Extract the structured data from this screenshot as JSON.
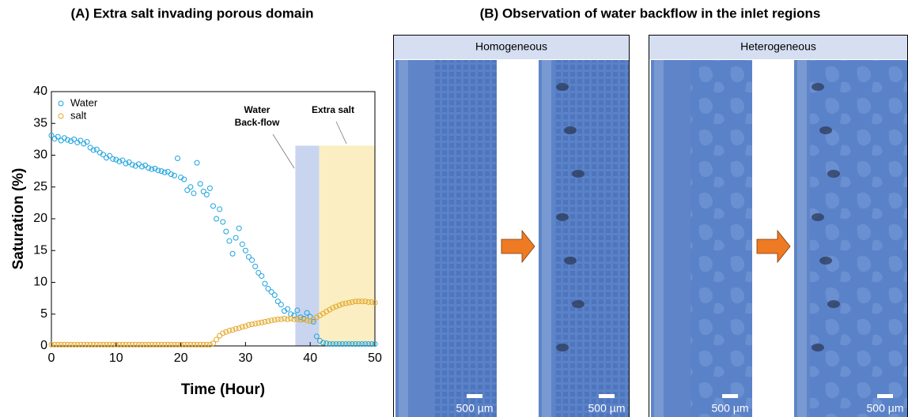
{
  "chart_data": {
    "type": "scatter",
    "title": "(A) Extra salt invading porous domain",
    "xlabel": "Time (Hour)",
    "ylabel": "Saturation (%)",
    "xlim": [
      0,
      50
    ],
    "ylim": [
      0,
      40
    ],
    "xticks": [
      0,
      10,
      20,
      30,
      40,
      50
    ],
    "yticks": [
      0,
      5,
      10,
      15,
      20,
      25,
      30,
      35,
      40
    ],
    "legend": "upper left",
    "x": [
      0,
      0.5,
      1,
      1.5,
      2,
      2.5,
      3,
      3.5,
      4,
      4.5,
      5,
      5.5,
      6,
      6.5,
      7,
      7.5,
      8,
      8.5,
      9,
      9.5,
      10,
      10.5,
      11,
      11.5,
      12,
      12.5,
      13,
      13.5,
      14,
      14.5,
      15,
      15.5,
      16,
      16.5,
      17,
      17.5,
      18,
      18.5,
      19,
      19.5,
      20,
      20.5,
      21,
      21.5,
      22,
      22.5,
      23,
      23.5,
      24,
      24.5,
      25,
      25.5,
      26,
      26.5,
      27,
      27.5,
      28,
      28.5,
      29,
      29.5,
      30,
      30.5,
      31,
      31.5,
      32,
      32.5,
      33,
      33.5,
      34,
      34.5,
      35,
      35.5,
      36,
      36.5,
      37,
      37.5,
      38,
      38.5,
      39,
      39.5,
      40,
      40.5,
      41,
      41.5,
      42,
      42.5,
      43,
      43.5,
      44,
      44.5,
      45,
      45.5,
      46,
      46.5,
      47,
      47.5,
      48,
      48.5,
      49,
      49.5,
      50
    ],
    "series": [
      {
        "name": "Water",
        "color": "#1aa3e0",
        "values": [
          33.1,
          32.6,
          32.9,
          32.3,
          32.7,
          32.4,
          32.2,
          32.5,
          32.0,
          32.3,
          31.8,
          32.1,
          31.2,
          30.8,
          30.9,
          30.4,
          30.1,
          29.6,
          29.9,
          29.4,
          29.3,
          29.0,
          29.2,
          28.7,
          28.9,
          28.5,
          28.3,
          28.6,
          28.2,
          28.4,
          28.0,
          27.8,
          27.9,
          27.6,
          27.5,
          27.3,
          27.4,
          27.0,
          26.8,
          29.5,
          26.5,
          26.2,
          24.5,
          25.0,
          24.0,
          28.8,
          25.5,
          24.3,
          23.8,
          24.8,
          22.0,
          20.0,
          21.5,
          19.5,
          18.0,
          16.5,
          14.5,
          17.0,
          18.5,
          16.0,
          15.0,
          14.0,
          13.5,
          12.5,
          11.5,
          11.0,
          9.8,
          9.0,
          8.5,
          8.0,
          7.0,
          6.5,
          5.5,
          5.8,
          5.0,
          4.8,
          5.6,
          4.5,
          4.3,
          5.2,
          4.6,
          3.8,
          1.5,
          0.8,
          0.5,
          0.4,
          0.3,
          0.3,
          0.3,
          0.3,
          0.3,
          0.3,
          0.3,
          0.3,
          0.3,
          0.3,
          0.3,
          0.3,
          0.3,
          0.3,
          0.3
        ]
      },
      {
        "name": "salt",
        "color": "#e3a82b",
        "values": [
          0.2,
          0.2,
          0.2,
          0.2,
          0.2,
          0.2,
          0.2,
          0.2,
          0.2,
          0.2,
          0.2,
          0.2,
          0.2,
          0.2,
          0.2,
          0.2,
          0.2,
          0.2,
          0.2,
          0.2,
          0.2,
          0.2,
          0.2,
          0.2,
          0.2,
          0.2,
          0.2,
          0.2,
          0.2,
          0.2,
          0.2,
          0.2,
          0.2,
          0.2,
          0.2,
          0.2,
          0.2,
          0.2,
          0.2,
          0.2,
          0.2,
          0.2,
          0.2,
          0.2,
          0.2,
          0.2,
          0.2,
          0.2,
          0.2,
          0.2,
          0.4,
          1.0,
          1.6,
          2.0,
          2.2,
          2.4,
          2.5,
          2.7,
          2.8,
          3.0,
          3.1,
          3.3,
          3.4,
          3.5,
          3.6,
          3.7,
          3.8,
          3.9,
          4.0,
          4.1,
          4.2,
          4.2,
          4.3,
          4.2,
          4.3,
          4.2,
          4.2,
          4.1,
          4.2,
          4.0,
          3.9,
          4.2,
          4.5,
          4.8,
          5.1,
          5.4,
          5.7,
          6.0,
          6.2,
          6.4,
          6.6,
          6.7,
          6.8,
          6.9,
          7.0,
          7.0,
          7.0,
          7.0,
          6.9,
          6.9,
          6.8
        ]
      }
    ],
    "spans": [
      {
        "label": [
          "Water",
          "Back-flow"
        ],
        "xrange": [
          37.7,
          41.4
        ],
        "yrange": [
          0,
          31.5
        ],
        "color": "#c9d5ef"
      },
      {
        "label": [
          "Extra salt"
        ],
        "xrange": [
          41.4,
          50
        ],
        "yrange": [
          0,
          31.5
        ],
        "color": "#fbeec2"
      }
    ]
  },
  "panel_b": {
    "title": "(B) Observation of water backflow in the inlet regions",
    "panels": [
      {
        "header": "Homogeneous",
        "scale_bars": [
          "500 µm",
          "500 µm"
        ]
      },
      {
        "header": "Heterogeneous",
        "scale_bars": [
          "500 µm",
          "500 µm"
        ]
      }
    ]
  }
}
